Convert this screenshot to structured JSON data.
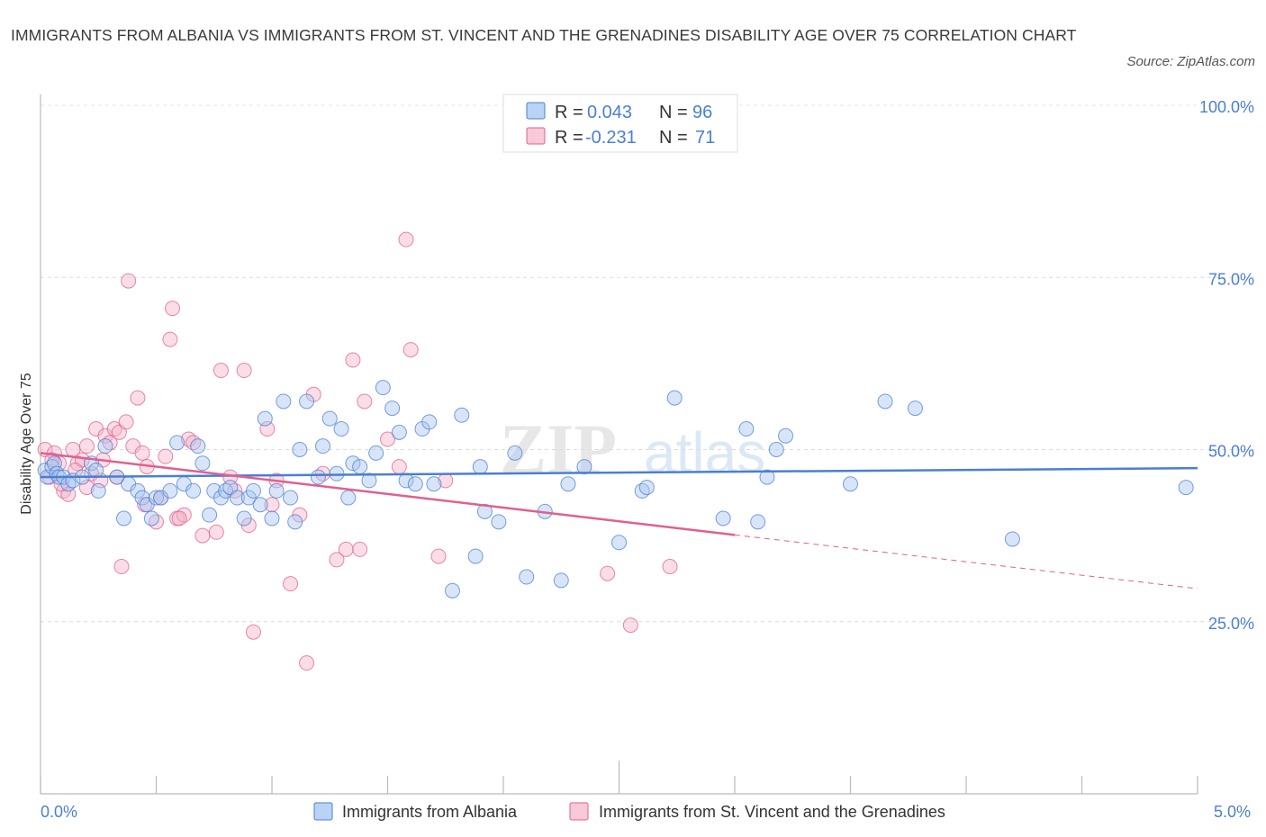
{
  "title": "IMMIGRANTS FROM ALBANIA VS IMMIGRANTS FROM ST. VINCENT AND THE GRENADINES DISABILITY AGE OVER 75 CORRELATION CHART",
  "source": "Source: ZipAtlas.com",
  "watermark": "ZIPatlas",
  "colors": {
    "blue": "#4a7fd4",
    "blue_fill": "#a9c6f0",
    "pink": "#e0608e",
    "pink_fill": "#f4b4ca"
  },
  "stats": [
    {
      "r_label": "R =",
      "r_value": "0.043",
      "n_label": "N =",
      "n_value": "96"
    },
    {
      "r_label": "R =",
      "r_value": "-0.231",
      "n_label": "N =",
      "n_value": "71"
    }
  ],
  "chart_data": {
    "type": "scatter",
    "ylabel": "Disability Age Over 75",
    "xlim": [
      0,
      5
    ],
    "ylim": [
      0,
      100
    ],
    "x_tick_labels": [
      "0.0%",
      "5.0%"
    ],
    "y_ticks": [
      25,
      50,
      75,
      100
    ],
    "y_tick_labels": [
      "25.0%",
      "50.0%",
      "75.0%",
      "100.0%"
    ],
    "grid": true,
    "legend_position": "bottom",
    "series": [
      {
        "name": "Immigrants from Albania",
        "color": "blue",
        "trend": {
          "x0": 0.0,
          "y0": 46.0,
          "x1": 5.0,
          "y1": 47.3
        },
        "points": [
          [
            0.02,
            47
          ],
          [
            0.03,
            46
          ],
          [
            0.05,
            47.5
          ],
          [
            0.06,
            48
          ],
          [
            0.07,
            46.5
          ],
          [
            0.08,
            46
          ],
          [
            0.1,
            46
          ],
          [
            0.12,
            45
          ],
          [
            0.14,
            45.5
          ],
          [
            0.18,
            46
          ],
          [
            0.22,
            48
          ],
          [
            0.24,
            47
          ],
          [
            0.25,
            44
          ],
          [
            0.28,
            50.5
          ],
          [
            0.33,
            46
          ],
          [
            0.36,
            40
          ],
          [
            0.38,
            45
          ],
          [
            0.42,
            44
          ],
          [
            0.44,
            43
          ],
          [
            0.46,
            42
          ],
          [
            0.48,
            40
          ],
          [
            0.5,
            43
          ],
          [
            0.52,
            43
          ],
          [
            0.56,
            44
          ],
          [
            0.59,
            51
          ],
          [
            0.62,
            45
          ],
          [
            0.66,
            44
          ],
          [
            0.68,
            50.5
          ],
          [
            0.7,
            48
          ],
          [
            0.73,
            40.5
          ],
          [
            0.75,
            44
          ],
          [
            0.78,
            43
          ],
          [
            0.8,
            44
          ],
          [
            0.82,
            44.5
          ],
          [
            0.85,
            43
          ],
          [
            0.88,
            40
          ],
          [
            0.9,
            43
          ],
          [
            0.92,
            44
          ],
          [
            0.95,
            42
          ],
          [
            0.97,
            54.5
          ],
          [
            1.0,
            40
          ],
          [
            1.02,
            44
          ],
          [
            1.05,
            57
          ],
          [
            1.08,
            43
          ],
          [
            1.1,
            39.5
          ],
          [
            1.12,
            50
          ],
          [
            1.15,
            57
          ],
          [
            1.2,
            46
          ],
          [
            1.22,
            50.5
          ],
          [
            1.25,
            54.5
          ],
          [
            1.28,
            46.5
          ],
          [
            1.3,
            53
          ],
          [
            1.33,
            43
          ],
          [
            1.35,
            48
          ],
          [
            1.38,
            47.5
          ],
          [
            1.42,
            45.5
          ],
          [
            1.45,
            49.5
          ],
          [
            1.48,
            59
          ],
          [
            1.52,
            56
          ],
          [
            1.55,
            52.5
          ],
          [
            1.58,
            45.5
          ],
          [
            1.62,
            45
          ],
          [
            1.65,
            53
          ],
          [
            1.68,
            54
          ],
          [
            1.7,
            45
          ],
          [
            1.78,
            29.5
          ],
          [
            1.82,
            55
          ],
          [
            1.88,
            34.5
          ],
          [
            1.9,
            47.5
          ],
          [
            1.92,
            41
          ],
          [
            1.98,
            39.5
          ],
          [
            2.05,
            49.5
          ],
          [
            2.1,
            31.5
          ],
          [
            2.18,
            41
          ],
          [
            2.25,
            31
          ],
          [
            2.28,
            45
          ],
          [
            2.35,
            47.5
          ],
          [
            2.5,
            36.5
          ],
          [
            2.6,
            44
          ],
          [
            2.62,
            44.5
          ],
          [
            2.74,
            57.5
          ],
          [
            2.95,
            40
          ],
          [
            3.05,
            53
          ],
          [
            3.1,
            39.5
          ],
          [
            3.14,
            46
          ],
          [
            3.18,
            50
          ],
          [
            3.22,
            52
          ],
          [
            3.5,
            45
          ],
          [
            3.65,
            57
          ],
          [
            3.78,
            56
          ],
          [
            4.2,
            37
          ],
          [
            4.95,
            44.5
          ]
        ]
      },
      {
        "name": "Immigrants from St. Vincent and the Grenadines",
        "color": "pink",
        "trend": {
          "x0": 0.0,
          "y0": 49.5,
          "x1": 3.0,
          "y1": 37.6,
          "dash_x1": 5.0,
          "dash_y1": 29.8
        },
        "points": [
          [
            0.02,
            50
          ],
          [
            0.04,
            46
          ],
          [
            0.06,
            49.5
          ],
          [
            0.08,
            48
          ],
          [
            0.1,
            44
          ],
          [
            0.12,
            43.5
          ],
          [
            0.14,
            50
          ],
          [
            0.16,
            48
          ],
          [
            0.18,
            48.5
          ],
          [
            0.2,
            50.5
          ],
          [
            0.22,
            46.5
          ],
          [
            0.24,
            53
          ],
          [
            0.26,
            45.5
          ],
          [
            0.28,
            52
          ],
          [
            0.3,
            51
          ],
          [
            0.32,
            53
          ],
          [
            0.34,
            52.5
          ],
          [
            0.35,
            33
          ],
          [
            0.37,
            54
          ],
          [
            0.38,
            74.5
          ],
          [
            0.4,
            50.5
          ],
          [
            0.42,
            57.5
          ],
          [
            0.44,
            49.5
          ],
          [
            0.46,
            47.5
          ],
          [
            0.5,
            39.5
          ],
          [
            0.52,
            43
          ],
          [
            0.54,
            49
          ],
          [
            0.56,
            66
          ],
          [
            0.57,
            70.5
          ],
          [
            0.59,
            40
          ],
          [
            0.62,
            40.5
          ],
          [
            0.64,
            51.5
          ],
          [
            0.66,
            51
          ],
          [
            0.7,
            37.5
          ],
          [
            0.76,
            38
          ],
          [
            0.78,
            61.5
          ],
          [
            0.82,
            46
          ],
          [
            0.84,
            44
          ],
          [
            0.88,
            61.5
          ],
          [
            0.9,
            39
          ],
          [
            0.92,
            23.5
          ],
          [
            0.98,
            53
          ],
          [
            1.02,
            45.5
          ],
          [
            1.08,
            30.5
          ],
          [
            1.12,
            40.5
          ],
          [
            1.15,
            19
          ],
          [
            1.18,
            58
          ],
          [
            1.22,
            46.5
          ],
          [
            1.28,
            34
          ],
          [
            1.32,
            35.5
          ],
          [
            1.35,
            63
          ],
          [
            1.38,
            35.5
          ],
          [
            1.4,
            57
          ],
          [
            1.5,
            51.5
          ],
          [
            1.55,
            47.5
          ],
          [
            1.58,
            80.5
          ],
          [
            1.6,
            64.5
          ],
          [
            1.72,
            34.5
          ],
          [
            1.75,
            45.5
          ],
          [
            2.45,
            32
          ],
          [
            2.55,
            24.5
          ],
          [
            2.72,
            33
          ],
          [
            0.15,
            47
          ],
          [
            0.09,
            45
          ],
          [
            0.27,
            48.5
          ],
          [
            0.45,
            42
          ],
          [
            0.6,
            40
          ],
          [
            0.2,
            44.5
          ],
          [
            0.33,
            46
          ],
          [
            1.0,
            42
          ],
          [
            0.05,
            48.5
          ]
        ]
      }
    ]
  }
}
